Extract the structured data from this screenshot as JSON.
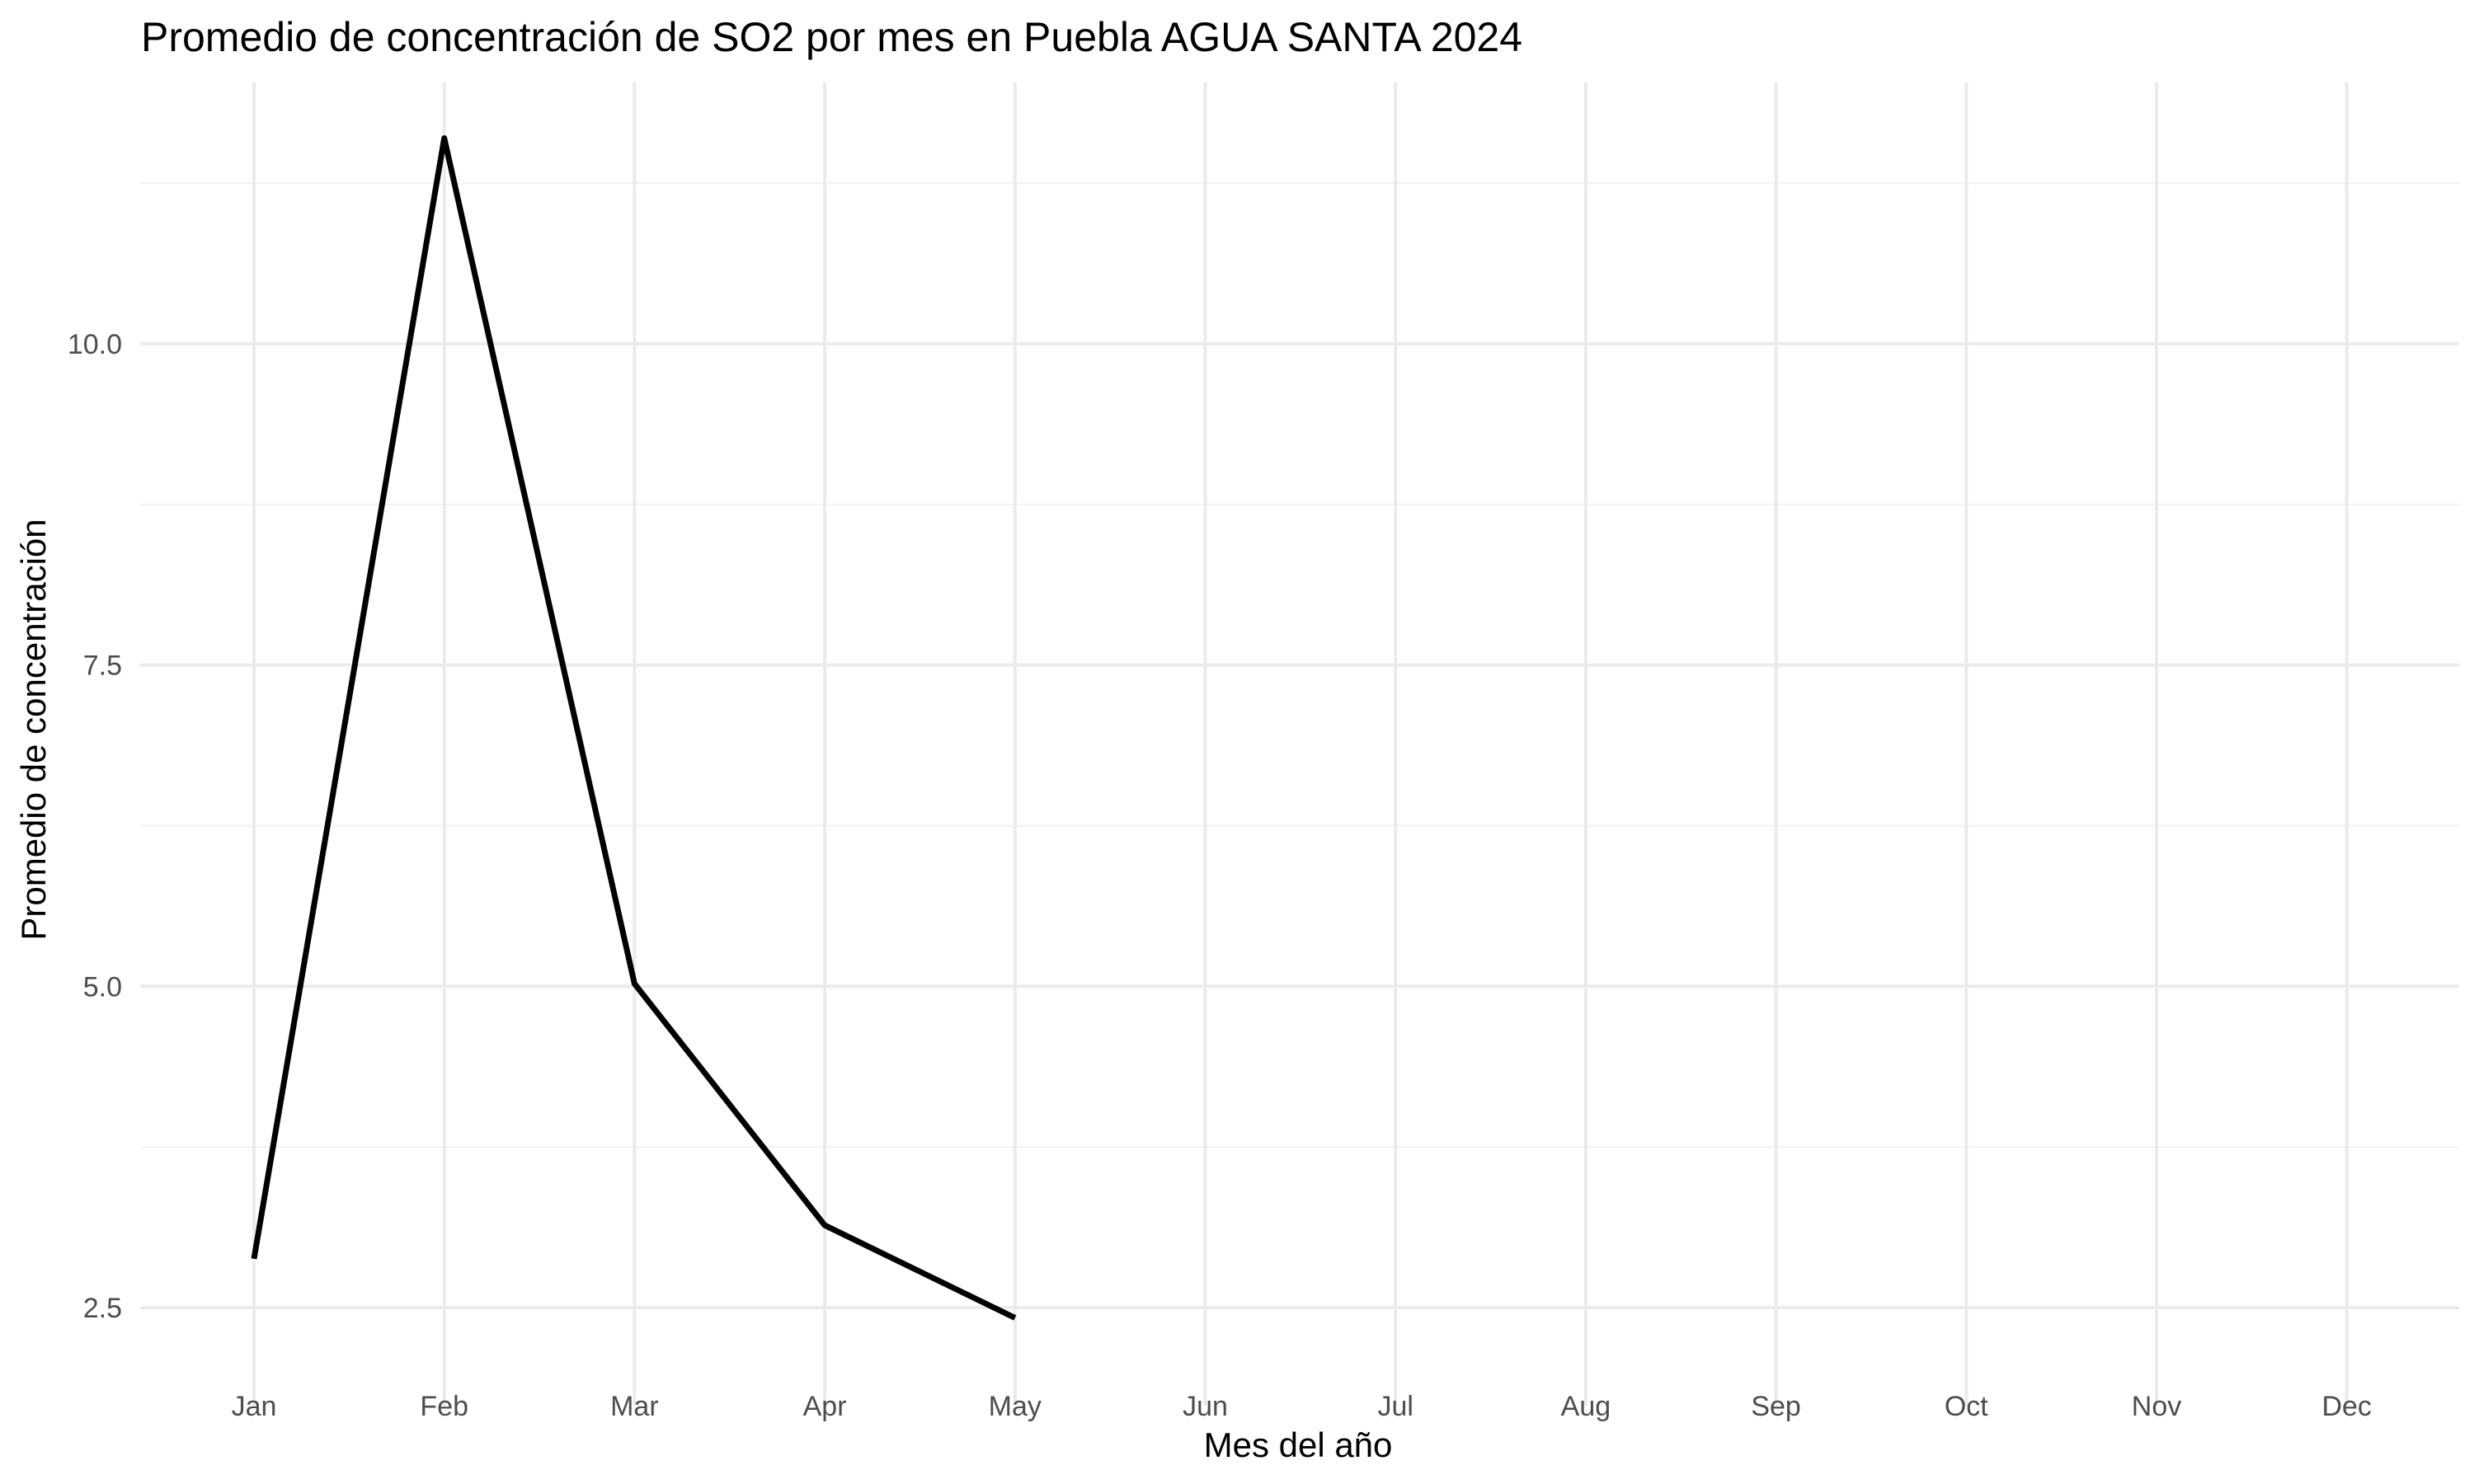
{
  "chart_data": {
    "type": "line",
    "title": "Promedio de concentración de SO2 por mes en Puebla AGUA SANTA 2024",
    "xlabel": "Mes del año",
    "ylabel": "Promedio de concentración",
    "categories": [
      "Jan",
      "Feb",
      "Mar",
      "Apr",
      "May",
      "Jun",
      "Jul",
      "Aug",
      "Sep",
      "Oct",
      "Nov",
      "Dec"
    ],
    "x": [
      "Jan",
      "Feb",
      "Mar",
      "Apr",
      "May"
    ],
    "values": [
      2.88,
      11.6,
      5.02,
      3.14,
      2.42
    ],
    "ylim": [
      1.95,
      12.1
    ],
    "yticks": [
      2.5,
      5.0,
      7.5,
      10.0
    ],
    "ytick_labels": [
      "2.5",
      "5.0",
      "7.5",
      "10.0"
    ],
    "grid": true,
    "legend": "none",
    "line_color": "#000000"
  }
}
